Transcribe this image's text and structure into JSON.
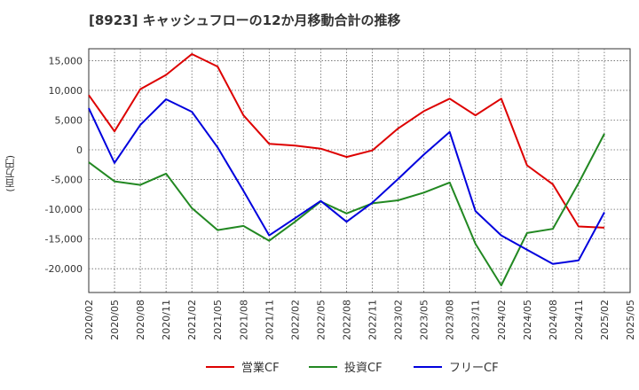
{
  "chart_data": {
    "type": "line",
    "title": "[8923]  キャッシュフローの12か月移動合計の推移",
    "ylabel": "(百万円)",
    "xlabel": "",
    "ylim": [
      -24000,
      17000
    ],
    "yticks": [
      15000,
      10000,
      5000,
      0,
      -5000,
      -10000,
      -15000,
      -20000
    ],
    "ytick_labels": [
      "15,000",
      "10,000",
      "5,000",
      "0",
      "-5,000",
      "-10,000",
      "-15,000",
      "-20,000"
    ],
    "x_tick_labels": [
      "2020/02",
      "2020/05",
      "2020/08",
      "2020/11",
      "2021/02",
      "2021/05",
      "2021/08",
      "2021/11",
      "2022/02",
      "2022/05",
      "2022/08",
      "2022/11",
      "2023/02",
      "2023/05",
      "2023/08",
      "2023/11",
      "2024/02",
      "2024/05",
      "2024/08",
      "2024/11",
      "2025/02",
      "2025/05"
    ],
    "grid": true,
    "legend_position": "bottom-center",
    "series": [
      {
        "name": "営業CF",
        "color": "#dd0000",
        "values": [
          9200,
          3100,
          10200,
          12600,
          16100,
          14000,
          5800,
          1000,
          700,
          200,
          -1200,
          -100,
          3600,
          6500,
          8600,
          5800,
          8600,
          -2600,
          -5800,
          -12900,
          -13100,
          null
        ]
      },
      {
        "name": "投資CF",
        "color": "#228822",
        "values": [
          -2100,
          -5300,
          -5900,
          -4000,
          -9800,
          -13500,
          -12800,
          -15300,
          -12100,
          -8700,
          -10700,
          -9000,
          -8500,
          -7200,
          -5500,
          -15800,
          -22800,
          -14000,
          -13300,
          -5600,
          2700,
          null
        ]
      },
      {
        "name": "フリーCF",
        "color": "#0000dd",
        "values": [
          7000,
          -2200,
          4200,
          8500,
          6400,
          400,
          -6900,
          -14400,
          -11500,
          -8600,
          -12100,
          -8900,
          -4900,
          -800,
          3000,
          -10300,
          -14400,
          -16800,
          -19200,
          -18600,
          -10500,
          null
        ]
      }
    ]
  }
}
